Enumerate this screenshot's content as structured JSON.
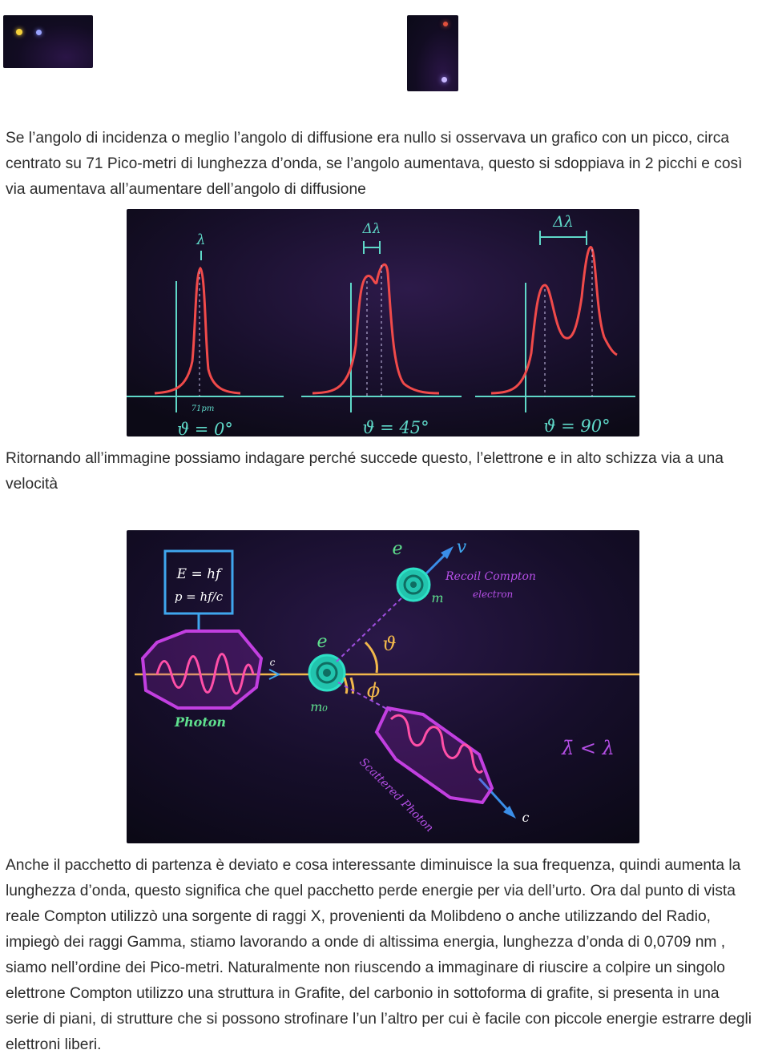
{
  "paragraphs": {
    "p1": "Se l’angolo di incidenza o meglio l’angolo di diffusione era nullo si osservava un grafico  con un picco, circa centrato su 71 Pico-metri di lunghezza d’onda, se l’angolo aumentava, questo si sdoppiava in 2 picchi e così via aumentava all’aumentare dell’angolo di diffusione",
    "p2": "Ritornando all’immagine possiamo indagare perché succede questo, l’elettrone e in alto schizza via a una velocità",
    "p3": "Anche il pacchetto di partenza è deviato e cosa interessante diminuisce la sua frequenza, quindi aumenta la lunghezza d’onda, questo significa che quel pacchetto perde energie per via dell’urto. Ora dal punto di vista reale Compton utilizzò una sorgente di raggi X, provenienti da Molibdeno o anche utilizzando del Radio, impiegò dei raggi Gamma, stiamo lavorando a onde di altissima energia, lunghezza d’onda di 0,0709 nm , siamo nell’ordine dei Pico-metri. Naturalmente non riuscendo a immaginare di riuscire a colpire un singolo elettrone Compton utilizzo una struttura in Grafite, del carbonio in sottoforma di grafite, si presenta in una serie di piani, di strutture che si possono strofinare l’un l’altro per cui è facile con piccole energie estrarre degli elettroni liberi."
  },
  "figure1": {
    "peak_label": "λ",
    "delta_label_1": "Δλ",
    "delta_label_2": "Δλ",
    "pm_label": "71pm",
    "angle_1": "ϑ = 0°",
    "angle_2": "ϑ = 45°",
    "angle_3": "ϑ = 90°"
  },
  "figure2": {
    "energy_eq": "E = hf",
    "momentum_eq": "p = hf/c",
    "photon_label": "Photon",
    "electron_label": "e",
    "rest_mass_label": "m₀",
    "recoil_electron_label": "e",
    "recoil_mass_label": "m",
    "velocity_label": "v",
    "recoil_text_1": "Recoil Compton",
    "recoil_text_2": "electron",
    "theta_label": "ϑ",
    "phi_label": "ϕ",
    "c_label_incoming": "c",
    "c_label_scattered": "c",
    "scattered_label": "Scattered Photon",
    "lambda_relation": "λ̄ < λ"
  },
  "colors": {
    "text": "#2b2b2b",
    "board_bg": "#140d24",
    "curve": "#f04a4a",
    "axis": "#5fd8c8",
    "photon": "#c23fe0",
    "electron": "#2ee0c6",
    "beam": "#f2b84b",
    "arrow_blue": "#3a8ee8"
  }
}
